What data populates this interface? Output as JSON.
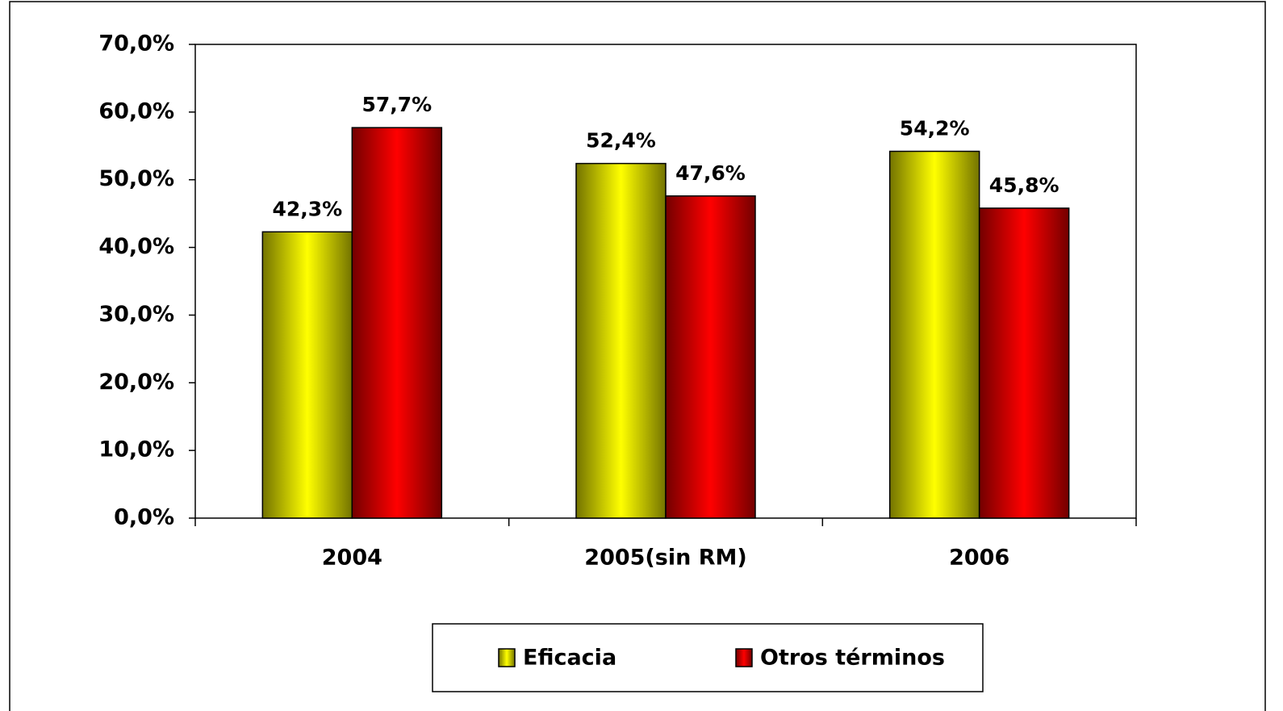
{
  "chart_data": {
    "type": "bar",
    "categories": [
      "2004",
      "2005(sin RM)",
      "2006"
    ],
    "series": [
      {
        "name": "Eficacia",
        "color": "#ffff00",
        "values": [
          42.3,
          52.4,
          54.2
        ],
        "value_labels": [
          "42,3%",
          "52,4%",
          "54,2%"
        ]
      },
      {
        "name": "Otros términos",
        "color": "#ff0000",
        "values": [
          57.7,
          47.6,
          45.8
        ],
        "value_labels": [
          "57,7%",
          "47,6%",
          "45,8%"
        ]
      }
    ],
    "ylim": [
      0,
      70
    ],
    "yticks": [
      {
        "value": 0,
        "label": "0,0%"
      },
      {
        "value": 10,
        "label": "10,0%"
      },
      {
        "value": 20,
        "label": "20,0%"
      },
      {
        "value": 30,
        "label": "30,0%"
      },
      {
        "value": 40,
        "label": "40,0%"
      },
      {
        "value": 50,
        "label": "50,0%"
      },
      {
        "value": 60,
        "label": "60,0%"
      },
      {
        "value": 70,
        "label": "70,0%"
      }
    ],
    "legend": "bottom"
  }
}
